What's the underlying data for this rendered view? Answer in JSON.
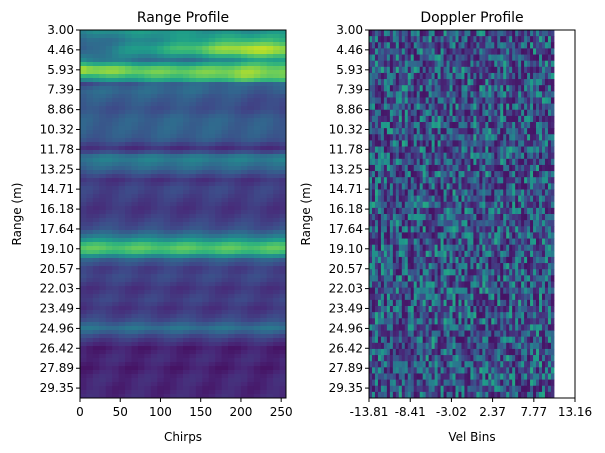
{
  "chart_data": [
    {
      "type": "heatmap",
      "title": "Range Profile",
      "xlabel": "Chirps",
      "ylabel": "Range (m)",
      "colormap": "viridis",
      "xlim": [
        0,
        256
      ],
      "xticks": [
        "0",
        "50",
        "100",
        "150",
        "200",
        "250"
      ],
      "xtick_values": [
        0,
        50,
        100,
        150,
        200,
        250
      ],
      "ylim": [
        3.0,
        30.08
      ],
      "yticks": [
        "3.00",
        "4.46",
        "5.93",
        "7.39",
        "8.86",
        "10.32",
        "11.78",
        "13.25",
        "14.71",
        "16.18",
        "17.64",
        "19.10",
        "20.57",
        "22.03",
        "23.49",
        "24.96",
        "26.42",
        "27.89",
        "29.35"
      ],
      "range_bands": [
        {
          "range": 3.0,
          "intensity": [
            0.45,
            0.55,
            0.55,
            0.5,
            0.45,
            0.5
          ]
        },
        {
          "range": 3.8,
          "intensity": [
            0.3,
            0.4,
            0.5,
            0.6,
            0.7,
            0.65
          ]
        },
        {
          "range": 4.46,
          "intensity": [
            0.25,
            0.5,
            0.65,
            0.8,
            0.95,
            0.9
          ]
        },
        {
          "range": 5.2,
          "intensity": [
            0.45,
            0.4,
            0.35,
            0.4,
            0.55,
            0.6
          ]
        },
        {
          "range": 5.93,
          "intensity": [
            0.95,
            0.85,
            0.8,
            0.8,
            0.85,
            0.8
          ]
        },
        {
          "range": 6.6,
          "intensity": [
            0.55,
            0.6,
            0.65,
            0.7,
            0.8,
            0.75
          ]
        },
        {
          "range": 7.0,
          "intensity": [
            0.2,
            0.25,
            0.3,
            0.3,
            0.3,
            0.3
          ]
        },
        {
          "range": 7.39,
          "intensity": [
            0.35,
            0.35,
            0.35,
            0.35,
            0.3,
            0.3
          ]
        },
        {
          "range": 8.0,
          "intensity": [
            0.3,
            0.3,
            0.3,
            0.28,
            0.25,
            0.2
          ]
        },
        {
          "range": 8.86,
          "intensity": [
            0.25,
            0.25,
            0.25,
            0.25,
            0.22,
            0.2
          ]
        },
        {
          "range": 9.5,
          "intensity": [
            0.3,
            0.3,
            0.32,
            0.32,
            0.3,
            0.28
          ]
        },
        {
          "range": 10.32,
          "intensity": [
            0.3,
            0.3,
            0.32,
            0.32,
            0.3,
            0.3
          ]
        },
        {
          "range": 11.0,
          "intensity": [
            0.28,
            0.28,
            0.3,
            0.3,
            0.28,
            0.28
          ]
        },
        {
          "range": 11.78,
          "intensity": [
            0.15,
            0.12,
            0.12,
            0.12,
            0.12,
            0.12
          ]
        },
        {
          "range": 12.4,
          "intensity": [
            0.42,
            0.45,
            0.45,
            0.45,
            0.45,
            0.45
          ]
        },
        {
          "range": 13.25,
          "intensity": [
            0.3,
            0.32,
            0.33,
            0.33,
            0.32,
            0.3
          ]
        },
        {
          "range": 14.0,
          "intensity": [
            0.15,
            0.15,
            0.15,
            0.15,
            0.15,
            0.15
          ]
        },
        {
          "range": 14.71,
          "intensity": [
            0.2,
            0.2,
            0.22,
            0.22,
            0.2,
            0.2
          ]
        },
        {
          "range": 15.5,
          "intensity": [
            0.18,
            0.18,
            0.18,
            0.18,
            0.18,
            0.18
          ]
        },
        {
          "range": 16.18,
          "intensity": [
            0.15,
            0.15,
            0.15,
            0.15,
            0.15,
            0.15
          ]
        },
        {
          "range": 17.0,
          "intensity": [
            0.2,
            0.2,
            0.2,
            0.2,
            0.2,
            0.2
          ]
        },
        {
          "range": 17.64,
          "intensity": [
            0.25,
            0.25,
            0.25,
            0.25,
            0.25,
            0.25
          ]
        },
        {
          "range": 18.3,
          "intensity": [
            0.45,
            0.45,
            0.45,
            0.45,
            0.45,
            0.45
          ]
        },
        {
          "range": 18.9,
          "intensity": [
            0.75,
            0.75,
            0.75,
            0.75,
            0.75,
            0.75
          ]
        },
        {
          "range": 19.3,
          "intensity": [
            0.7,
            0.7,
            0.7,
            0.7,
            0.7,
            0.7
          ]
        },
        {
          "range": 19.9,
          "intensity": [
            0.3,
            0.3,
            0.3,
            0.3,
            0.3,
            0.3
          ]
        },
        {
          "range": 20.57,
          "intensity": [
            0.18,
            0.18,
            0.18,
            0.18,
            0.18,
            0.18
          ]
        },
        {
          "range": 21.2,
          "intensity": [
            0.22,
            0.22,
            0.22,
            0.22,
            0.22,
            0.22
          ]
        },
        {
          "range": 22.03,
          "intensity": [
            0.15,
            0.15,
            0.15,
            0.15,
            0.15,
            0.15
          ]
        },
        {
          "range": 22.8,
          "intensity": [
            0.2,
            0.2,
            0.2,
            0.2,
            0.2,
            0.2
          ]
        },
        {
          "range": 23.49,
          "intensity": [
            0.15,
            0.15,
            0.15,
            0.15,
            0.15,
            0.15
          ]
        },
        {
          "range": 24.3,
          "intensity": [
            0.22,
            0.22,
            0.22,
            0.22,
            0.22,
            0.22
          ]
        },
        {
          "range": 24.96,
          "intensity": [
            0.38,
            0.38,
            0.38,
            0.38,
            0.38,
            0.38
          ]
        },
        {
          "range": 25.6,
          "intensity": [
            0.2,
            0.2,
            0.2,
            0.2,
            0.2,
            0.2
          ]
        },
        {
          "range": 26.42,
          "intensity": [
            0.08,
            0.08,
            0.08,
            0.08,
            0.08,
            0.08
          ]
        },
        {
          "range": 27.2,
          "intensity": [
            0.12,
            0.12,
            0.12,
            0.12,
            0.12,
            0.12
          ]
        },
        {
          "range": 27.89,
          "intensity": [
            0.08,
            0.08,
            0.08,
            0.08,
            0.08,
            0.08
          ]
        },
        {
          "range": 28.6,
          "intensity": [
            0.12,
            0.12,
            0.12,
            0.12,
            0.12,
            0.12
          ]
        },
        {
          "range": 29.35,
          "intensity": [
            0.1,
            0.1,
            0.1,
            0.1,
            0.1,
            0.1
          ]
        },
        {
          "range": 30.08,
          "intensity": [
            0.12,
            0.12,
            0.12,
            0.12,
            0.12,
            0.12
          ]
        }
      ]
    },
    {
      "type": "heatmap",
      "title": "Doppler Profile",
      "xlabel": "Vel Bins",
      "ylabel": "Range (m)",
      "colormap": "viridis",
      "xlim": [
        -13.81,
        13.16
      ],
      "data_extent_x": [
        -13.81,
        10.4
      ],
      "xticks": [
        "-13.81",
        "-8.41",
        "-3.02",
        "2.37",
        "7.77",
        "13.16"
      ],
      "xtick_values": [
        -13.81,
        -8.41,
        -3.02,
        2.37,
        7.77,
        13.16
      ],
      "ylim": [
        3.0,
        30.08
      ],
      "yticks": [
        "3.00",
        "4.46",
        "5.93",
        "7.39",
        "8.86",
        "10.32",
        "11.78",
        "13.25",
        "14.71",
        "16.18",
        "17.64",
        "19.10",
        "20.57",
        "22.03",
        "23.49",
        "24.96",
        "26.42",
        "27.89",
        "29.35"
      ],
      "texture": "noise"
    }
  ],
  "colors": {
    "viridis": [
      "#440154",
      "#482878",
      "#3e4a89",
      "#31688e",
      "#26828e",
      "#1f9e89",
      "#35b779",
      "#6ece58",
      "#b5de2b",
      "#fde725"
    ]
  }
}
